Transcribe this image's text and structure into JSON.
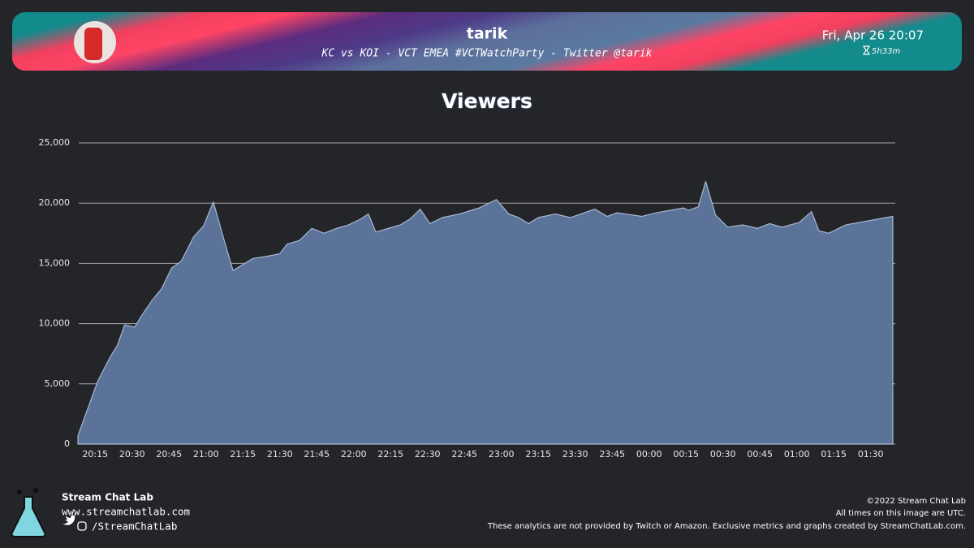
{
  "header": {
    "title": "tarik",
    "subtitle": "KC vs KOI - VCT EMEA #VCTWatchParty - Twitter @tarik",
    "date": "Fri, Apr 26 20:07",
    "duration": "5h33m"
  },
  "chart_data": {
    "type": "area",
    "title": "Viewers",
    "color": "#5b7399",
    "line_color": "#a8b8d2",
    "grid": true,
    "x": [
      "20:08",
      "20:16",
      "20:21",
      "20:24",
      "20:27",
      "20:31",
      "20:34",
      "20:38",
      "20:42",
      "20:46",
      "20:50",
      "20:55",
      "20:59",
      "21:03",
      "21:07",
      "21:11",
      "21:15",
      "21:19",
      "21:25",
      "21:30",
      "21:33",
      "21:38",
      "21:43",
      "21:48",
      "21:53",
      "21:58",
      "22:03",
      "22:06",
      "22:09",
      "22:14",
      "22:19",
      "22:23",
      "22:27",
      "22:31",
      "22:36",
      "22:43",
      "22:51",
      "22:58",
      "23:03",
      "23:07",
      "23:11",
      "23:15",
      "23:22",
      "23:28",
      "23:38",
      "23:43",
      "23:47",
      "23:57",
      "00:03",
      "00:14",
      "00:16",
      "00:20",
      "00:23",
      "00:27",
      "00:32",
      "00:38",
      "00:44",
      "00:49",
      "00:54",
      "01:01",
      "01:06",
      "01:09",
      "01:13",
      "01:20",
      "01:39"
    ],
    "values": [
      700,
      5200,
      7200,
      8200,
      9900,
      9700,
      10700,
      11900,
      12900,
      14600,
      15200,
      17200,
      18100,
      20100,
      17200,
      14400,
      14900,
      15400,
      15600,
      15800,
      16600,
      16900,
      17900,
      17500,
      17900,
      18200,
      18700,
      19100,
      17600,
      17900,
      18200,
      18700,
      19500,
      18300,
      18800,
      19100,
      19600,
      20300,
      19100,
      18800,
      18300,
      18800,
      19100,
      18800,
      19500,
      18900,
      19200,
      18900,
      19200,
      19600,
      19400,
      19700,
      21800,
      19000,
      18000,
      18200,
      17900,
      18300,
      18000,
      18400,
      19300,
      17700,
      17500,
      18200,
      18900
    ],
    "xlim": [
      "20:07",
      "01:40"
    ],
    "xticks": [
      "20:15",
      "20:30",
      "20:45",
      "21:00",
      "21:15",
      "21:30",
      "21:45",
      "22:00",
      "22:15",
      "22:30",
      "22:45",
      "23:00",
      "23:15",
      "23:30",
      "23:45",
      "00:00",
      "00:15",
      "00:30",
      "00:45",
      "01:00",
      "01:15",
      "01:30"
    ],
    "ylim": [
      0,
      25000
    ],
    "yticks": [
      0,
      {
        "value": 5000,
        "label": "5,000"
      },
      {
        "value": 10000,
        "label": "10,000"
      },
      {
        "value": 15000,
        "label": "15,000"
      },
      {
        "value": 20000,
        "label": "20,000"
      },
      {
        "value": 25000,
        "label": "25,000"
      }
    ]
  },
  "footer": {
    "brand": "Stream Chat Lab",
    "url": "www.streamchatlab.com",
    "social": "/StreamChatLab",
    "copyright": "©2022 Stream Chat Lab",
    "timezone_note": "All times on this image are UTC.",
    "disclaimer": "These analytics are not provided by Twitch or Amazon. Exclusive metrics and graphs created by StreamChatLab.com."
  }
}
